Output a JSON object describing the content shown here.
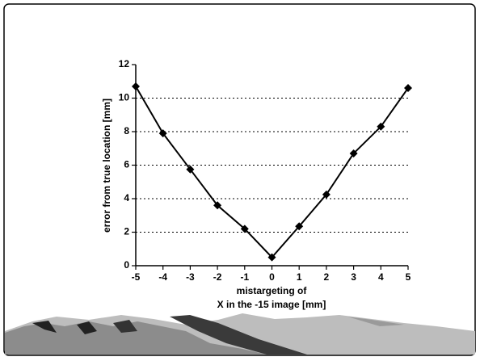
{
  "chart_data": {
    "type": "line",
    "x": [
      -5,
      -4,
      -3,
      -2,
      -1,
      0,
      1,
      2,
      3,
      4,
      5
    ],
    "series": [
      {
        "color": "#000000",
        "values": [
          10.7,
          7.9,
          5.75,
          3.6,
          2.2,
          0.5,
          2.35,
          4.25,
          6.7,
          8.3,
          10.6
        ]
      }
    ],
    "xlim": [
      -5,
      5
    ],
    "xticks": [
      -5,
      -4,
      -3,
      -2,
      -1,
      0,
      1,
      2,
      3,
      4,
      5
    ],
    "ylim": [
      0,
      12
    ],
    "yticks": [
      0,
      2,
      4,
      6,
      8,
      10,
      12
    ],
    "xlabel": [
      "mistargeting of",
      "X in the -15 image [mm]"
    ],
    "ylabel": "error from true location [mm]",
    "grid": true
  }
}
